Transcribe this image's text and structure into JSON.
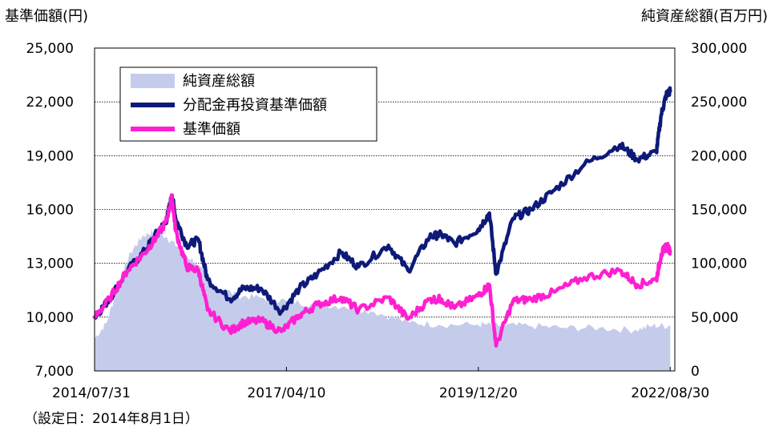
{
  "chart_data": {
    "type": "line",
    "y_left_title": "基準価額(円)",
    "y_right_title": "純資産総額(百万円)",
    "footnote": "（設定日：2014年8月1日）",
    "y_left": {
      "ticks": [
        "25,000",
        "22,000",
        "19,000",
        "16,000",
        "13,000",
        "10,000",
        "7,000"
      ],
      "range": [
        7000,
        25000
      ]
    },
    "y_right": {
      "ticks": [
        "300,000",
        "250,000",
        "200,000",
        "150,000",
        "100,000",
        "50,000",
        "0"
      ],
      "range": [
        0,
        300000
      ]
    },
    "x_ticks": [
      "2014/07/31",
      "2017/04/10",
      "2019/12/20",
      "2022/08/30"
    ],
    "grid": true,
    "legend_placement": "top-left",
    "series": [
      {
        "name": "純資産総額",
        "kind": "area",
        "axis": "right",
        "color": "#c5cceb",
        "points": [
          [
            "2014-07-31",
            30000
          ],
          [
            "2014-10-01",
            45000
          ],
          [
            "2014-12-01",
            80000
          ],
          [
            "2015-02-01",
            110000
          ],
          [
            "2015-04-01",
            125000
          ],
          [
            "2015-06-01",
            130000
          ],
          [
            "2015-08-01",
            125000
          ],
          [
            "2015-10-01",
            115000
          ],
          [
            "2016-01-01",
            100000
          ],
          [
            "2016-04-01",
            80000
          ],
          [
            "2016-08-01",
            70000
          ],
          [
            "2016-12-01",
            68000
          ],
          [
            "2017-04-10",
            65000
          ],
          [
            "2017-09-01",
            62000
          ],
          [
            "2018-02-01",
            60000
          ],
          [
            "2018-07-01",
            55000
          ],
          [
            "2019-01-01",
            45000
          ],
          [
            "2019-06-01",
            43000
          ],
          [
            "2019-12-20",
            43000
          ],
          [
            "2020-04-01",
            42000
          ],
          [
            "2020-09-01",
            42000
          ],
          [
            "2021-03-01",
            40000
          ],
          [
            "2021-09-01",
            40000
          ],
          [
            "2022-03-01",
            38000
          ],
          [
            "2022-06-01",
            42000
          ],
          [
            "2022-08-30",
            42000
          ]
        ]
      },
      {
        "name": "分配金再投資基準価額",
        "kind": "line",
        "axis": "left",
        "color": "#0d1a78",
        "points": [
          [
            "2014-07-31",
            10000
          ],
          [
            "2014-10-15",
            11000
          ],
          [
            "2015-01-15",
            12600
          ],
          [
            "2015-04-15",
            13700
          ],
          [
            "2015-06-15",
            14700
          ],
          [
            "2015-08-01",
            15300
          ],
          [
            "2015-09-01",
            16800
          ],
          [
            "2015-09-20",
            15500
          ],
          [
            "2015-11-15",
            14000
          ],
          [
            "2016-01-15",
            14300
          ],
          [
            "2016-03-01",
            12100
          ],
          [
            "2016-06-25",
            11000
          ],
          [
            "2016-09-01",
            11600
          ],
          [
            "2016-12-01",
            11600
          ],
          [
            "2017-03-15",
            10300
          ],
          [
            "2017-06-15",
            11600
          ],
          [
            "2017-09-15",
            12400
          ],
          [
            "2018-01-15",
            13600
          ],
          [
            "2018-04-15",
            12800
          ],
          [
            "2018-09-15",
            14000
          ],
          [
            "2018-12-25",
            12600
          ],
          [
            "2019-04-15",
            14500
          ],
          [
            "2019-06-15",
            14600
          ],
          [
            "2019-08-20",
            14100
          ],
          [
            "2019-12-20",
            14900
          ],
          [
            "2020-02-15",
            15800
          ],
          [
            "2020-03-20",
            12400
          ],
          [
            "2020-06-15",
            15500
          ],
          [
            "2020-09-15",
            16000
          ],
          [
            "2021-01-15",
            17100
          ],
          [
            "2021-06-15",
            18500
          ],
          [
            "2021-12-15",
            19600
          ],
          [
            "2022-03-15",
            18800
          ],
          [
            "2022-06-20",
            19200
          ],
          [
            "2022-07-15",
            21300
          ],
          [
            "2022-08-10",
            22400
          ],
          [
            "2022-08-30",
            22600
          ]
        ]
      },
      {
        "name": "基準価額",
        "kind": "line",
        "axis": "left",
        "color": "#ff1fd2",
        "points": [
          [
            "2014-07-31",
            10000
          ],
          [
            "2014-10-15",
            11000
          ],
          [
            "2015-01-15",
            12600
          ],
          [
            "2015-04-15",
            13600
          ],
          [
            "2015-06-15",
            14500
          ],
          [
            "2015-08-01",
            15300
          ],
          [
            "2015-09-01",
            16700
          ],
          [
            "2015-09-20",
            14800
          ],
          [
            "2015-11-15",
            12800
          ],
          [
            "2016-01-15",
            12600
          ],
          [
            "2016-03-01",
            10400
          ],
          [
            "2016-06-25",
            9200
          ],
          [
            "2016-09-01",
            9700
          ],
          [
            "2016-12-01",
            9800
          ],
          [
            "2017-03-15",
            9200
          ],
          [
            "2017-06-15",
            10100
          ],
          [
            "2017-09-15",
            10700
          ],
          [
            "2018-01-15",
            11100
          ],
          [
            "2018-04-15",
            10400
          ],
          [
            "2018-09-15",
            11100
          ],
          [
            "2018-12-25",
            9900
          ],
          [
            "2019-04-15",
            11000
          ],
          [
            "2019-06-15",
            11000
          ],
          [
            "2019-08-20",
            10500
          ],
          [
            "2019-12-20",
            11200
          ],
          [
            "2020-02-15",
            11800
          ],
          [
            "2020-03-20",
            8400
          ],
          [
            "2020-06-15",
            10900
          ],
          [
            "2020-09-15",
            11000
          ],
          [
            "2021-01-15",
            11400
          ],
          [
            "2021-06-15",
            12200
          ],
          [
            "2021-12-15",
            12600
          ],
          [
            "2022-03-15",
            11800
          ],
          [
            "2022-06-20",
            12100
          ],
          [
            "2022-07-15",
            13500
          ],
          [
            "2022-08-10",
            14000
          ],
          [
            "2022-08-30",
            13700
          ]
        ]
      }
    ]
  }
}
